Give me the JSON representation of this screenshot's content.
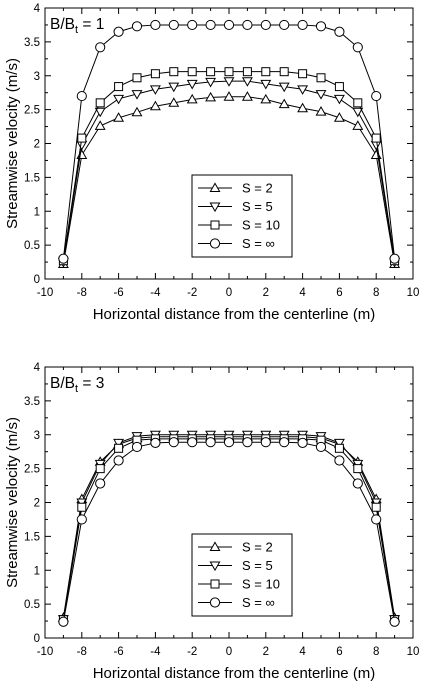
{
  "chart_data": [
    {
      "type": "line",
      "annotation": {
        "base": "B/B",
        "sub": "t",
        "tail": " = 1"
      },
      "xlabel": "Horizontal distance from the centerline (m)",
      "ylabel": "Streamwise velocity (m/s)",
      "xlim": [
        -10,
        10
      ],
      "ylim": [
        0,
        4
      ],
      "xticks": [
        "-10",
        "-8",
        "-6",
        "-4",
        "-2",
        "0",
        "2",
        "4",
        "6",
        "8",
        "10"
      ],
      "yticks": [
        "0",
        "0.5",
        "1",
        "1.5",
        "2",
        "2.5",
        "3",
        "3.5",
        "4"
      ],
      "grid": false,
      "legend_position": "bottom-center",
      "x": [
        -9,
        -8,
        -7,
        -6,
        -5,
        -4,
        -3,
        -2,
        -1,
        0,
        1,
        2,
        3,
        4,
        5,
        6,
        7,
        8,
        9
      ],
      "series": [
        {
          "name": "S = 2",
          "marker": "triangle-up",
          "values": [
            0.22,
            1.83,
            2.26,
            2.38,
            2.46,
            2.55,
            2.6,
            2.65,
            2.68,
            2.69,
            2.69,
            2.65,
            2.58,
            2.52,
            2.47,
            2.38,
            2.26,
            1.83,
            0.22
          ]
        },
        {
          "name": "S = 5",
          "marker": "triangle-down",
          "values": [
            0.25,
            1.98,
            2.47,
            2.66,
            2.73,
            2.8,
            2.84,
            2.88,
            2.91,
            2.92,
            2.92,
            2.88,
            2.84,
            2.8,
            2.73,
            2.66,
            2.47,
            1.98,
            0.25
          ]
        },
        {
          "name": "S = 10",
          "marker": "square",
          "values": [
            0.27,
            2.08,
            2.6,
            2.84,
            2.97,
            3.03,
            3.06,
            3.06,
            3.06,
            3.06,
            3.06,
            3.06,
            3.06,
            3.03,
            2.97,
            2.84,
            2.6,
            2.08,
            0.27
          ]
        },
        {
          "name": "S = ∞",
          "marker": "circle",
          "values": [
            0.3,
            2.7,
            3.42,
            3.65,
            3.73,
            3.75,
            3.75,
            3.75,
            3.75,
            3.75,
            3.75,
            3.75,
            3.75,
            3.75,
            3.73,
            3.65,
            3.42,
            2.7,
            0.3
          ]
        }
      ]
    },
    {
      "type": "line",
      "annotation": {
        "base": "B/B",
        "sub": "t",
        "tail": " = 3"
      },
      "xlabel": "Horizontal distance from the centerline (m)",
      "ylabel": "Streamwise velocity (m/s)",
      "xlim": [
        -10,
        10
      ],
      "ylim": [
        0,
        4
      ],
      "xticks": [
        "-10",
        "-8",
        "-6",
        "-4",
        "-2",
        "0",
        "2",
        "4",
        "6",
        "8",
        "10"
      ],
      "yticks": [
        "0",
        "0.5",
        "1",
        "1.5",
        "2",
        "2.5",
        "3",
        "3.5",
        "4"
      ],
      "grid": false,
      "legend_position": "bottom-center",
      "x": [
        -9,
        -8,
        -7,
        -6,
        -5,
        -4,
        -3,
        -2,
        -1,
        0,
        1,
        2,
        3,
        4,
        5,
        6,
        7,
        8,
        9
      ],
      "series": [
        {
          "name": "S = 2",
          "marker": "triangle-up",
          "values": [
            0.3,
            2.05,
            2.6,
            2.86,
            2.95,
            2.97,
            2.97,
            2.97,
            2.97,
            2.97,
            2.97,
            2.97,
            2.97,
            2.97,
            2.95,
            2.86,
            2.6,
            2.05,
            0.3
          ]
        },
        {
          "name": "S = 5",
          "marker": "triangle-down",
          "values": [
            0.28,
            2.0,
            2.57,
            2.88,
            2.98,
            3.0,
            3.0,
            3.0,
            3.0,
            3.0,
            3.0,
            3.0,
            3.0,
            3.0,
            2.98,
            2.88,
            2.57,
            2.0,
            0.28
          ]
        },
        {
          "name": "S = 10",
          "marker": "square",
          "values": [
            0.27,
            1.93,
            2.5,
            2.8,
            2.92,
            2.94,
            2.94,
            2.94,
            2.94,
            2.94,
            2.94,
            2.94,
            2.94,
            2.94,
            2.92,
            2.8,
            2.5,
            1.93,
            0.27
          ]
        },
        {
          "name": "S = ∞",
          "marker": "circle",
          "values": [
            0.24,
            1.75,
            2.28,
            2.62,
            2.82,
            2.88,
            2.89,
            2.89,
            2.89,
            2.89,
            2.89,
            2.89,
            2.89,
            2.88,
            2.82,
            2.62,
            2.28,
            1.75,
            0.24
          ]
        }
      ]
    }
  ]
}
